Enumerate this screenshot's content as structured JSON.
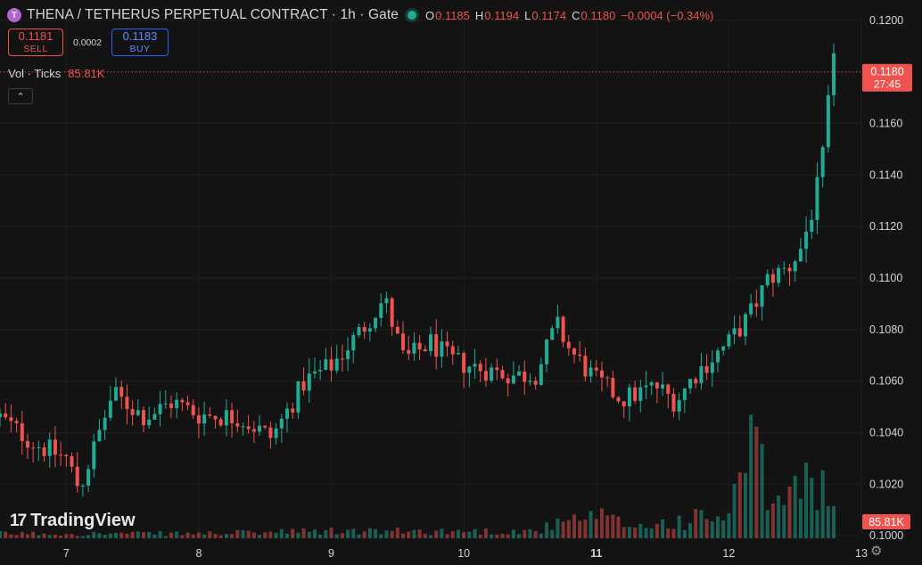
{
  "header": {
    "logo_letter": "T",
    "title": "THENA / TETHERUS PERPETUAL CONTRACT · 1h · Gate",
    "ohlc": {
      "o_label": "O",
      "o": "0.1185",
      "h_label": "H",
      "h": "0.1194",
      "l_label": "L",
      "l": "0.1174",
      "c_label": "C",
      "c": "0.1180",
      "change": "−0.0004 (−0.34%)"
    }
  },
  "trade": {
    "sell_price": "0.1181",
    "sell_label": "SELL",
    "spread": "0.0002",
    "buy_price": "0.1183",
    "buy_label": "BUY"
  },
  "volume_legend": {
    "label": "Vol · Ticks",
    "value": "85.81K"
  },
  "collapse_icon": "^",
  "branding": {
    "mark": "17",
    "name": "TradingView"
  },
  "colors": {
    "up": "#22ab94",
    "down": "#ef5350",
    "background": "#131313",
    "grid": "#1f1f1f",
    "buy": "#2962ff"
  },
  "chart_data": {
    "type": "candlestick",
    "title": "THENA / TETHERUS PERPETUAL CONTRACT · 1h · Gate",
    "ylim": [
      0.0999,
      0.1201
    ],
    "y_ticks": [
      "0.1200",
      "0.1180",
      "0.1160",
      "0.1140",
      "0.1120",
      "0.1100",
      "0.1080",
      "0.1060",
      "0.1040",
      "0.1020",
      "0.1000"
    ],
    "x_ticks": [
      "7",
      "8",
      "9",
      "10",
      "11",
      "12",
      "13"
    ],
    "x_range_days": [
      6.5,
      13.0
    ],
    "last_price_label": "0.1180",
    "countdown_label": "27:45",
    "volume_last_label": "85.81K",
    "anchors_close": [
      [
        6.5,
        0.1046
      ],
      [
        6.75,
        0.1036
      ],
      [
        7.0,
        0.103
      ],
      [
        7.1,
        0.1018
      ],
      [
        7.25,
        0.104
      ],
      [
        7.35,
        0.1055
      ],
      [
        7.6,
        0.1046
      ],
      [
        7.8,
        0.1052
      ],
      [
        8.0,
        0.1047
      ],
      [
        8.3,
        0.1046
      ],
      [
        8.55,
        0.1038
      ],
      [
        8.8,
        0.106
      ],
      [
        9.0,
        0.1066
      ],
      [
        9.2,
        0.1078
      ],
      [
        9.4,
        0.1092
      ],
      [
        9.55,
        0.1068
      ],
      [
        9.75,
        0.1075
      ],
      [
        9.9,
        0.1068
      ],
      [
        10.2,
        0.1064
      ],
      [
        10.4,
        0.1062
      ],
      [
        10.55,
        0.1063
      ],
      [
        10.7,
        0.1082
      ],
      [
        10.8,
        0.1072
      ],
      [
        11.0,
        0.106
      ],
      [
        11.2,
        0.1053
      ],
      [
        11.45,
        0.1058
      ],
      [
        11.6,
        0.1052
      ],
      [
        11.75,
        0.1063
      ],
      [
        12.0,
        0.1075
      ],
      [
        12.15,
        0.1085
      ],
      [
        12.3,
        0.11
      ],
      [
        12.45,
        0.1104
      ],
      [
        12.55,
        0.1112
      ],
      [
        12.65,
        0.113
      ],
      [
        12.72,
        0.115
      ],
      [
        12.78,
        0.1185
      ],
      [
        12.81,
        0.118
      ]
    ],
    "volume_anchors": [
      [
        6.5,
        2
      ],
      [
        8.0,
        2
      ],
      [
        9.0,
        3
      ],
      [
        10.5,
        3
      ],
      [
        10.9,
        8
      ],
      [
        11.0,
        9
      ],
      [
        11.3,
        5
      ],
      [
        12.0,
        10
      ],
      [
        12.18,
        40
      ],
      [
        12.28,
        20
      ],
      [
        12.4,
        15
      ],
      [
        12.55,
        22
      ],
      [
        12.65,
        28
      ],
      [
        12.75,
        18
      ],
      [
        12.81,
        8
      ]
    ],
    "volume_ylim": [
      0,
      55
    ]
  }
}
